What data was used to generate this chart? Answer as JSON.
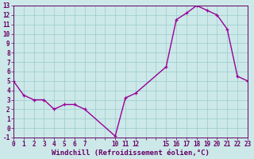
{
  "x": [
    0,
    1,
    2,
    3,
    4,
    5,
    6,
    7,
    10,
    11,
    12,
    15,
    16,
    17,
    18,
    19,
    20,
    21,
    22,
    23
  ],
  "y": [
    5.0,
    3.5,
    3.0,
    3.0,
    2.0,
    2.5,
    2.5,
    2.0,
    -0.85,
    3.2,
    3.7,
    6.5,
    11.5,
    12.2,
    13.0,
    12.5,
    12.0,
    10.5,
    5.5,
    5.0
  ],
  "xlabel": "Windchill (Refroidissement éolien,°C)",
  "ymin": -1,
  "ymax": 13,
  "xmin": 0,
  "xmax": 23,
  "line_color": "#990099",
  "marker_color": "#990099",
  "bg_color": "#cce8e8",
  "grid_color": "#99cccc",
  "axis_color": "#660066",
  "label_color": "#660066",
  "tick_fontsize": 5.5,
  "xlabel_fontsize": 6.5,
  "linewidth": 1.0,
  "markersize": 3.5
}
